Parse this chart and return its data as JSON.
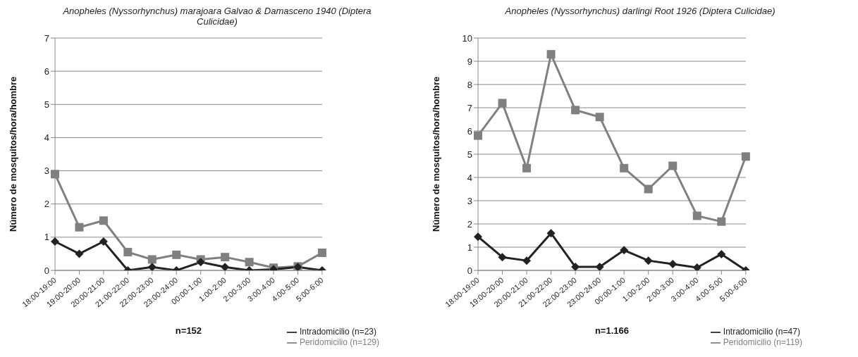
{
  "chart_data": [
    {
      "type": "line",
      "title": "Anopheles (Nyssorhynchus) marajoara Galvao & Damasceno 1940 (Diptera Culicidae)",
      "xlabel": "n=152",
      "ylabel": "Número de mosquitos/hora/hombre",
      "categories": [
        "18:00-19:00",
        "19:00-20:00",
        "20:00-21:00",
        "21:00-22:00",
        "22:00-23:00",
        "23:00-24:00",
        "00:00-1:00",
        "1:00-2:00",
        "2:00-3:00",
        "3:00-4:00",
        "4:00-5:00",
        "5:00-6:00"
      ],
      "series": [
        {
          "name": "Peridomicilio (n=129)",
          "color": "#808080",
          "marker": "square",
          "values": [
            2.9,
            1.3,
            1.5,
            0.55,
            0.33,
            0.47,
            0.33,
            0.4,
            0.25,
            0.08,
            0.12,
            0.53
          ]
        },
        {
          "name": "Intradomicilio (n=23)",
          "color": "#222222",
          "marker": "diamond",
          "values": [
            0.87,
            0.5,
            0.87,
            0,
            0.1,
            0,
            0.25,
            0.1,
            0,
            0.03,
            0.1,
            0
          ]
        }
      ],
      "ylim": [
        0,
        7
      ],
      "yticks": [
        0,
        1,
        2,
        3,
        4,
        5,
        6,
        7
      ],
      "grid": "y",
      "legend": "bottom"
    },
    {
      "type": "line",
      "title": "Anopheles (Nyssorhynchus) darlingi Root 1926 (Diptera Culicidae)",
      "xlabel": "n=1.166",
      "ylabel": "Número de mosquitos/hora/hombre",
      "categories": [
        "18:00-19:00",
        "19:00-20:00",
        "20:00-21:00",
        "21:00-22:00",
        "22:00-23:00",
        "23:00-24:00",
        "00:00-1:00",
        "1:00-2:00",
        "2:00-3:00",
        "3:00-4:00",
        "4:00-5:00",
        "5:00-6:00"
      ],
      "series": [
        {
          "name": "Peridomicilio (n=119)",
          "color": "#808080",
          "marker": "square",
          "values": [
            5.8,
            7.2,
            4.4,
            9.3,
            6.9,
            6.6,
            4.4,
            3.5,
            4.5,
            2.35,
            2.1,
            4.9
          ]
        },
        {
          "name": "Intradomicilio (n=47)",
          "color": "#222222",
          "marker": "diamond",
          "values": [
            1.45,
            0.57,
            0.42,
            1.6,
            0.15,
            0.15,
            0.87,
            0.42,
            0.27,
            0.12,
            0.7,
            0
          ]
        }
      ],
      "ylim": [
        0,
        10
      ],
      "yticks": [
        0,
        1,
        2,
        3,
        4,
        5,
        6,
        7,
        8,
        9,
        10
      ],
      "grid": "y",
      "legend": "bottom"
    }
  ]
}
